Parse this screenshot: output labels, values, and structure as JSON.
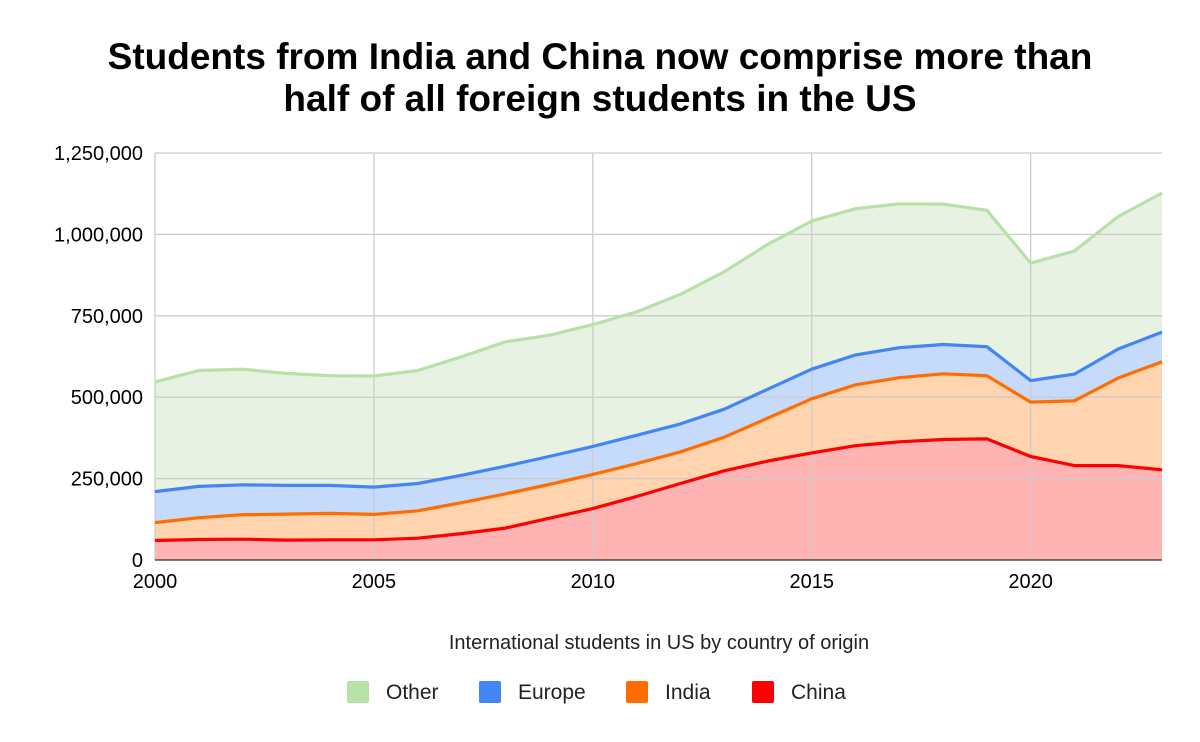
{
  "chart_data": {
    "type": "area",
    "stacked": true,
    "title_lines": [
      "Students from India and China now comprise more than",
      "half of all foreign students in the US"
    ],
    "xlabel": "International students in US by country of origin",
    "ylabel": "",
    "x": [
      2000,
      2001,
      2002,
      2003,
      2004,
      2005,
      2006,
      2007,
      2008,
      2009,
      2010,
      2011,
      2012,
      2013,
      2014,
      2015,
      2016,
      2017,
      2018,
      2019,
      2020,
      2021,
      2022,
      2023
    ],
    "xlim": [
      2000,
      2023
    ],
    "ylim": [
      0,
      1250000
    ],
    "x_ticks": [
      2000,
      2005,
      2010,
      2015,
      2020
    ],
    "x_tick_labels": [
      "2000",
      "2005",
      "2010",
      "2015",
      "2020"
    ],
    "y_ticks": [
      0,
      250000,
      500000,
      750000,
      1000000,
      1250000
    ],
    "y_tick_labels": [
      "0",
      "250,000",
      "500,000",
      "750,000",
      "1,000,000",
      "1,250,000"
    ],
    "grid": true,
    "legend_position": "bottom",
    "series": [
      {
        "name": "China",
        "line_color": "#ff0000",
        "fill_color": "#ffb3b3",
        "values": [
          60000,
          63000,
          64000,
          61000,
          62000,
          62000,
          67000,
          81000,
          98000,
          128000,
          158000,
          195000,
          235000,
          274000,
          304000,
          329000,
          351000,
          363000,
          370000,
          372000,
          318000,
          290000,
          290000,
          277000
        ]
      },
      {
        "name": "India",
        "line_color": "#ff6d01",
        "fill_color": "#ffd4ae",
        "values": [
          55000,
          67000,
          75000,
          80000,
          81000,
          78000,
          84000,
          95000,
          105000,
          104000,
          105000,
          101000,
          97000,
          103000,
          132000,
          166000,
          187000,
          197000,
          202000,
          194000,
          167000,
          199000,
          269000,
          332000
        ]
      },
      {
        "name": "Europe",
        "line_color": "#4285f4",
        "fill_color": "#c6dafc",
        "values": [
          95000,
          96000,
          92000,
          88000,
          86000,
          84000,
          84000,
          84000,
          85000,
          86000,
          86000,
          87000,
          86000,
          86000,
          89000,
          91000,
          92000,
          92000,
          90000,
          89000,
          66000,
          82000,
          89000,
          91000
        ]
      },
      {
        "name": "Other",
        "line_color": "#b7e1a7",
        "fill_color": "#e7f2e3",
        "values": [
          337000,
          356000,
          355000,
          344000,
          337000,
          341000,
          347000,
          364000,
          382000,
          372000,
          374000,
          379000,
          398000,
          422000,
          445000,
          455000,
          449000,
          442000,
          431000,
          419000,
          361000,
          378000,
          407000,
          427000
        ]
      }
    ],
    "legend_order": [
      "Other",
      "Europe",
      "India",
      "China"
    ]
  }
}
